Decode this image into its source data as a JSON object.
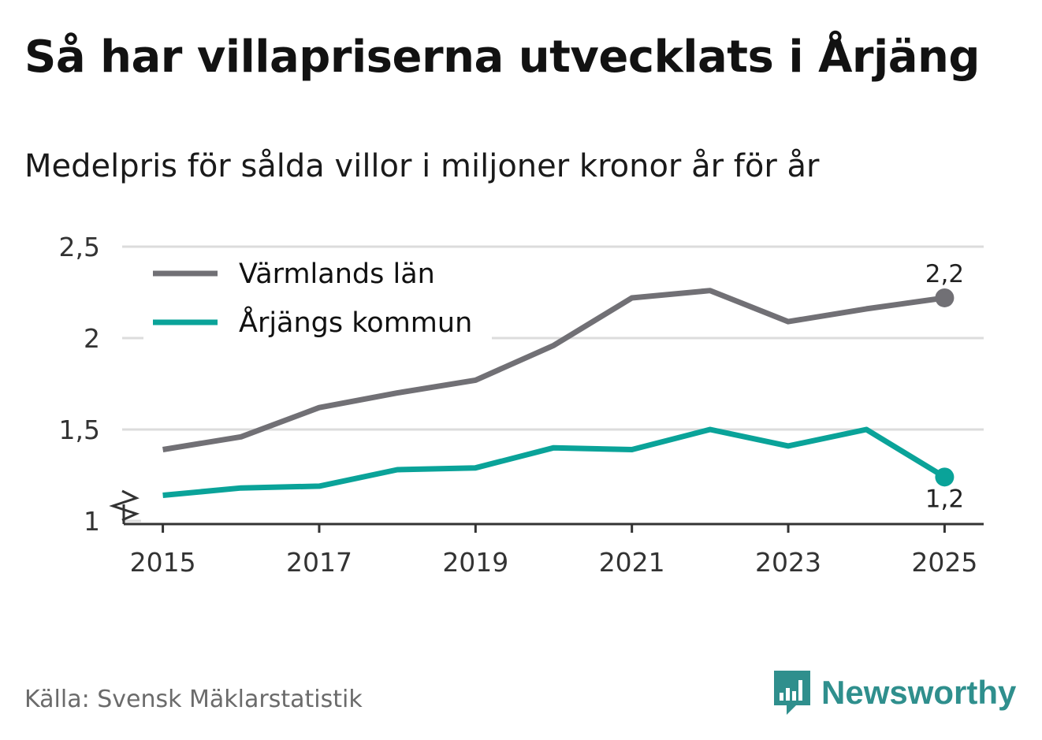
{
  "title": "Så har villapriserna utvecklats i Årjäng",
  "subtitle": "Medelpris för sålda villor i miljoner kronor år för år",
  "source": "Källa: Svensk Mäklarstatistik",
  "brand": {
    "name": "Newsworthy",
    "icon": "newsworthy-bar-chart-logo-icon",
    "color": "#2f8f8d"
  },
  "chart_data": {
    "type": "line",
    "x": [
      2015,
      2016,
      2017,
      2018,
      2019,
      2020,
      2021,
      2022,
      2023,
      2024,
      2025
    ],
    "series": [
      {
        "name": "Värmlands län",
        "color": "#717075",
        "values": [
          1.39,
          1.46,
          1.62,
          1.7,
          1.77,
          1.96,
          2.22,
          2.26,
          2.09,
          2.16,
          2.22
        ],
        "end_label": "2,2"
      },
      {
        "name": "Årjängs kommun",
        "color": "#0aa399",
        "values": [
          1.14,
          1.18,
          1.19,
          1.28,
          1.29,
          1.4,
          1.39,
          1.5,
          1.41,
          1.5,
          1.24
        ],
        "end_label": "1,2"
      }
    ],
    "ylim": [
      1,
      2.5
    ],
    "yticks": [
      1,
      1.5,
      2,
      2.5
    ],
    "ytick_labels": [
      "1",
      "1,5",
      "2",
      "2,5"
    ],
    "xticks": [
      2015,
      2017,
      2019,
      2021,
      2023,
      2025
    ],
    "xtick_labels": [
      "2015",
      "2017",
      "2019",
      "2021",
      "2023",
      "2025"
    ],
    "xlim": [
      2014.5,
      2025.5
    ],
    "grid": true,
    "y_axis_break": true,
    "legend_position": "top-left",
    "xlabel": "",
    "ylabel": ""
  }
}
